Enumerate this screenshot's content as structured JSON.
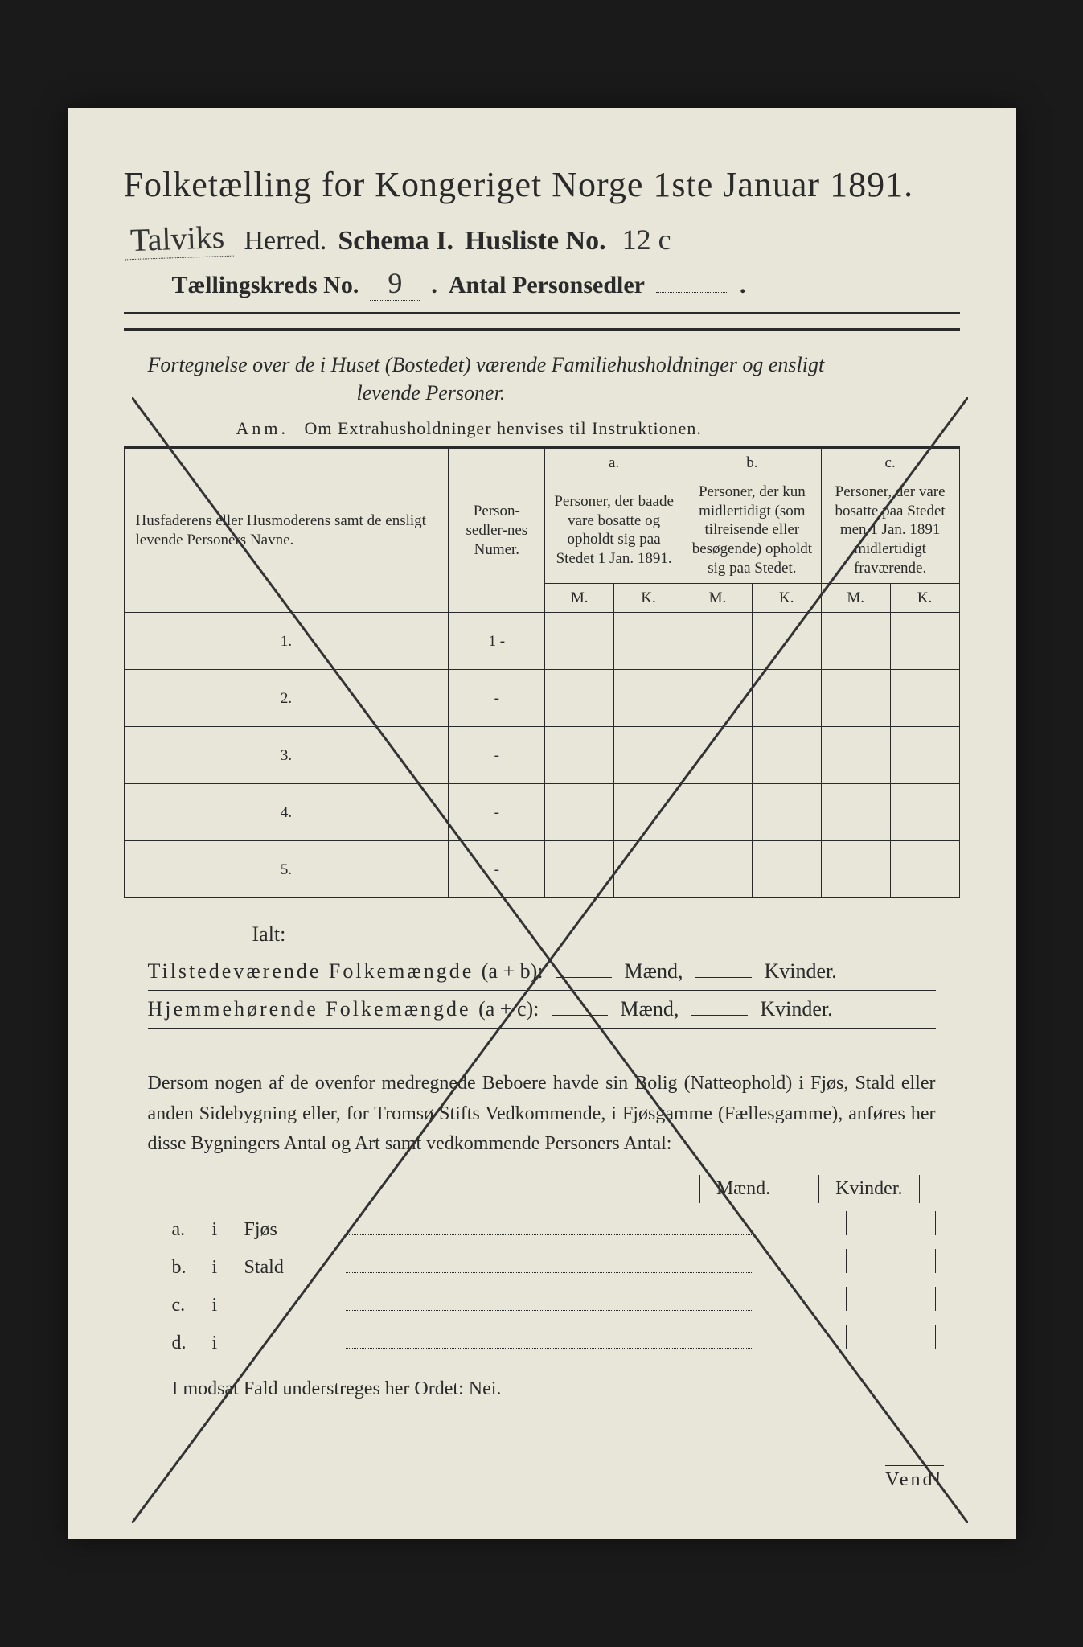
{
  "title": "Folketælling for Kongeriget Norge 1ste Januar 1891.",
  "header": {
    "herred_value": "Talviks",
    "herred_label": "Herred.",
    "schema_label": "Schema I.",
    "husliste_label": "Husliste No.",
    "husliste_value": "12 c",
    "kreds_label": "Tællingskreds No.",
    "kreds_value": "9",
    "antal_label": "Antal Personsedler",
    "antal_value": ""
  },
  "subtitle_line1": "Fortegnelse over de i Huset (Bostedet) værende Familiehusholdninger og ensligt",
  "subtitle_line2": "levende Personer.",
  "anm_label": "Anm.",
  "anm_text": "Om Extrahusholdninger henvises til Instruktionen.",
  "table": {
    "col_name": "Husfaderens eller Husmoderens samt de ensligt levende Personers Navne.",
    "col_num": "Person-sedler-nes Numer.",
    "col_a_label": "a.",
    "col_a_text": "Personer, der baade vare bosatte og opholdt sig paa Stedet 1 Jan. 1891.",
    "col_b_label": "b.",
    "col_b_text": "Personer, der kun midlertidigt (som tilreisende eller besøgende) opholdt sig paa Stedet.",
    "col_c_label": "c.",
    "col_c_text": "Personer, der vare bosatte paa Stedet men 1 Jan. 1891 midlertidigt fraværende.",
    "m": "M.",
    "k": "K.",
    "rows": [
      {
        "n": "1.",
        "num": "1 -"
      },
      {
        "n": "2.",
        "num": "-"
      },
      {
        "n": "3.",
        "num": "-"
      },
      {
        "n": "4.",
        "num": "-"
      },
      {
        "n": "5.",
        "num": "-"
      }
    ]
  },
  "ialt": "Ialt:",
  "sum1_label": "Tilstedeværende Folkemængde",
  "sum1_formula": "(a + b):",
  "sum2_label": "Hjemmehørende Folkemængde",
  "sum2_formula": "(a + c):",
  "maend": "Mænd,",
  "kvinder": "Kvinder.",
  "para": "Dersom nogen af de ovenfor medregnede Beboere havde sin Bolig (Natteophold) i Fjøs, Stald eller anden Sidebygning eller, for Tromsø Stifts Vedkommende, i Fjøsgamme (Fællesgamme), anføres her disse Bygningers Antal og Art samt vedkommende Personers Antal:",
  "maend_h": "Mænd.",
  "kvinder_h": "Kvinder.",
  "abcd": [
    {
      "l": "a.",
      "w": "Fjøs"
    },
    {
      "l": "b.",
      "w": "Stald"
    },
    {
      "l": "c.",
      "w": ""
    },
    {
      "l": "d.",
      "w": ""
    }
  ],
  "i_label": "i",
  "nei": "I modsat Fald understreges her Ordet: Nei.",
  "vend": "Vend!"
}
